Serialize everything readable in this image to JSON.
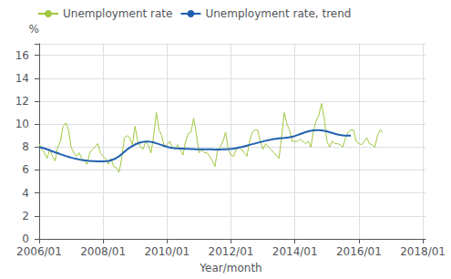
{
  "chart_data": {
    "type": "line",
    "xlabel": "Year/month",
    "ylabel": "%",
    "series": [
      {
        "name": "Unemployment rate",
        "color": "#a0c840",
        "x": [
          0,
          1,
          2,
          3,
          4,
          5,
          6,
          7,
          8,
          9,
          10,
          11,
          12,
          13,
          14,
          15,
          16,
          17,
          18,
          19,
          20,
          21,
          22,
          23,
          24,
          25,
          26,
          27,
          28,
          29,
          30,
          31,
          32,
          33,
          34,
          35,
          36,
          37,
          38,
          39,
          40,
          41,
          42,
          43,
          44,
          45,
          46,
          47,
          48,
          49,
          50,
          51,
          52,
          53,
          54,
          55,
          56,
          57,
          58,
          59,
          60,
          61,
          62,
          63,
          64,
          65,
          66,
          67,
          68,
          69,
          70,
          71,
          72,
          73,
          74,
          75,
          76,
          77,
          78,
          79,
          80,
          81,
          82,
          83,
          84,
          85,
          86,
          87,
          88,
          89,
          90,
          91,
          92,
          93,
          94,
          95,
          96,
          97,
          98,
          99,
          100,
          101,
          102,
          103,
          104,
          105,
          106,
          107,
          108,
          109,
          110,
          111,
          112,
          113,
          114,
          115,
          116,
          117,
          118,
          119,
          120,
          121,
          122,
          123,
          124,
          125,
          126,
          127,
          128,
          129
        ],
        "values": [
          8.3,
          7.8,
          7.5,
          7.0,
          7.8,
          7.2,
          6.8,
          8.0,
          8.5,
          9.8,
          10.1,
          9.5,
          8.0,
          7.5,
          7.2,
          7.5,
          7.0,
          6.8,
          6.5,
          7.5,
          7.8,
          8.0,
          8.3,
          7.5,
          7.2,
          7.0,
          6.5,
          7.0,
          6.3,
          6.2,
          5.8,
          7.0,
          8.8,
          9.0,
          8.8,
          8.2,
          9.8,
          8.5,
          8.0,
          7.8,
          8.5,
          8.2,
          7.5,
          9.0,
          11.0,
          9.5,
          9.0,
          8.0,
          8.2,
          8.5,
          8.0,
          7.8,
          8.2,
          7.8,
          7.3,
          8.5,
          9.2,
          9.3,
          10.5,
          9.2,
          7.5,
          7.8,
          7.5,
          7.5,
          7.2,
          6.8,
          6.3,
          7.8,
          8.0,
          8.5,
          9.3,
          7.8,
          7.3,
          7.2,
          7.8,
          8.0,
          7.8,
          7.5,
          7.2,
          8.5,
          9.3,
          9.5,
          9.5,
          8.5,
          7.8,
          8.3,
          8.0,
          7.8,
          7.5,
          7.3,
          7.0,
          8.8,
          11.0,
          10.0,
          9.5,
          8.5,
          8.5,
          8.5,
          8.7,
          8.5,
          8.3,
          8.5,
          8.0,
          9.5,
          10.3,
          10.8,
          11.8,
          10.5,
          8.5,
          8.0,
          8.5,
          8.3,
          8.3,
          8.2,
          8.0,
          8.8,
          9.3,
          9.5,
          9.5,
          8.5,
          8.3,
          8.2,
          8.5,
          8.8,
          8.3,
          8.2,
          8.0,
          9.0,
          9.5,
          9.3
        ]
      },
      {
        "name": "Unemployment rate, trend",
        "color": "#2060b0",
        "x": [
          0,
          1,
          2,
          3,
          4,
          5,
          6,
          7,
          8,
          9,
          10,
          11,
          12,
          13,
          14,
          15,
          16,
          17,
          18,
          19,
          20,
          21,
          22,
          23,
          24,
          25,
          26,
          27,
          28,
          29,
          30,
          31,
          32,
          33,
          34,
          35,
          36,
          37,
          38,
          39,
          40,
          41,
          42,
          43,
          44,
          45,
          46,
          47,
          48,
          49,
          50,
          51,
          52,
          53,
          54,
          55,
          56,
          57,
          58,
          59,
          60,
          61,
          62,
          63,
          64,
          65,
          66,
          67,
          68,
          69,
          70,
          71,
          72,
          73,
          74,
          75,
          76,
          77,
          78,
          79,
          80,
          81,
          82,
          83,
          84,
          85,
          86,
          87,
          88,
          89,
          90,
          91,
          92,
          93,
          94,
          95,
          96,
          97,
          98,
          99,
          100,
          101,
          102,
          103,
          104,
          105,
          106,
          107,
          108,
          109,
          110,
          111,
          112,
          113,
          114,
          115,
          116,
          117
        ],
        "values": [
          8.0,
          7.95,
          7.88,
          7.8,
          7.72,
          7.63,
          7.55,
          7.47,
          7.38,
          7.3,
          7.22,
          7.15,
          7.08,
          7.02,
          6.97,
          6.92,
          6.88,
          6.85,
          6.82,
          6.8,
          6.78,
          6.77,
          6.76,
          6.76,
          6.76,
          6.77,
          6.8,
          6.85,
          6.93,
          7.05,
          7.2,
          7.38,
          7.58,
          7.78,
          7.95,
          8.1,
          8.22,
          8.32,
          8.4,
          8.45,
          8.48,
          8.48,
          8.45,
          8.4,
          8.33,
          8.25,
          8.17,
          8.1,
          8.03,
          7.97,
          7.93,
          7.9,
          7.88,
          7.87,
          7.86,
          7.85,
          7.84,
          7.83,
          7.82,
          7.81,
          7.8,
          7.8,
          7.8,
          7.8,
          7.8,
          7.8,
          7.79,
          7.79,
          7.79,
          7.8,
          7.81,
          7.82,
          7.84,
          7.87,
          7.91,
          7.96,
          8.01,
          8.07,
          8.13,
          8.19,
          8.25,
          8.31,
          8.37,
          8.43,
          8.49,
          8.55,
          8.6,
          8.65,
          8.69,
          8.72,
          8.75,
          8.77,
          8.79,
          8.82,
          8.85,
          8.9,
          8.97,
          9.05,
          9.14,
          9.22,
          9.3,
          9.37,
          9.42,
          9.46,
          9.48,
          9.48,
          9.46,
          9.42,
          9.37,
          9.3,
          9.23,
          9.16,
          9.1,
          9.05,
          9.01,
          9.0,
          9.0,
          9.0
        ]
      }
    ],
    "xlim": [
      -1,
      145
    ],
    "xticks": [
      {
        "value": 0,
        "label": "2006/01"
      },
      {
        "value": 24,
        "label": "2008/01"
      },
      {
        "value": 48,
        "label": "2010/01"
      },
      {
        "value": 72,
        "label": "2012/01"
      },
      {
        "value": 96,
        "label": "2014/01"
      },
      {
        "value": 120,
        "label": "2016/01"
      },
      {
        "value": 144,
        "label": "2018/01"
      }
    ],
    "ylim": [
      0,
      17.0
    ],
    "yticks": [
      0,
      2,
      4,
      6,
      8,
      10,
      12,
      14,
      16
    ],
    "grid": true,
    "legend": "upper left"
  }
}
